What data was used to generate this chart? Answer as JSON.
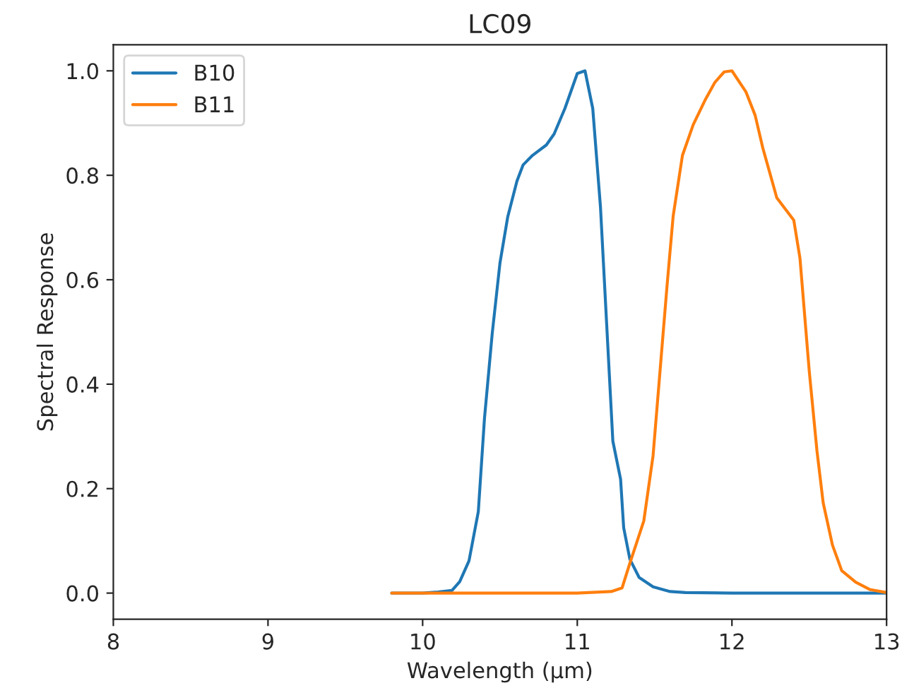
{
  "chart_data": {
    "type": "line",
    "title": "LC09",
    "xlabel": "Wavelength (µm)",
    "ylabel": "Spectral Response",
    "xlim": [
      8,
      13
    ],
    "xticks": [
      8,
      9,
      10,
      11,
      12,
      13
    ],
    "ylim": [
      -0.05,
      1.05
    ],
    "yticks": [
      {
        "value": 0,
        "label": "0.0"
      },
      {
        "value": 0.2,
        "label": "0.2"
      },
      {
        "value": 0.4,
        "label": "0.4"
      },
      {
        "value": 0.6,
        "label": "0.6"
      },
      {
        "value": 0.8,
        "label": "0.8"
      },
      {
        "value": 1.0,
        "label": "1.0"
      }
    ],
    "grid": false,
    "legend": "top left",
    "marker": "none",
    "line_style": "solid",
    "series": [
      {
        "name": "B10",
        "color": "#1f77b4",
        "x": [
          9.8,
          10.0,
          10.1,
          10.19,
          10.24,
          10.3,
          10.36,
          10.4,
          10.45,
          10.5,
          10.55,
          10.61,
          10.65,
          10.71,
          10.8,
          10.85,
          10.92,
          11.0,
          11.05,
          11.1,
          11.15,
          11.19,
          11.23,
          11.28,
          11.3,
          11.34,
          11.4,
          11.49,
          11.6,
          11.7,
          12.0,
          12.5,
          13.0
        ],
        "values": [
          0.0,
          0.0,
          0.002,
          0.005,
          0.022,
          0.062,
          0.156,
          0.335,
          0.497,
          0.632,
          0.72,
          0.789,
          0.82,
          0.838,
          0.858,
          0.879,
          0.928,
          0.995,
          1.0,
          0.928,
          0.739,
          0.515,
          0.291,
          0.218,
          0.125,
          0.065,
          0.03,
          0.012,
          0.003,
          0.001,
          0.0,
          0.0,
          0.0
        ]
      },
      {
        "name": "B11",
        "color": "#ff7f0e",
        "x": [
          9.8,
          10.5,
          11.0,
          11.22,
          11.29,
          11.34,
          11.43,
          11.49,
          11.53,
          11.58,
          11.62,
          11.68,
          11.75,
          11.83,
          11.89,
          11.95,
          12.0,
          12.09,
          12.15,
          12.2,
          12.29,
          12.4,
          12.44,
          12.5,
          12.55,
          12.59,
          12.65,
          12.71,
          12.8,
          12.89,
          12.98,
          13.0
        ],
        "values": [
          0.0,
          0.0,
          0.0,
          0.003,
          0.01,
          0.057,
          0.138,
          0.263,
          0.407,
          0.587,
          0.722,
          0.838,
          0.897,
          0.946,
          0.978,
          0.998,
          1.0,
          0.96,
          0.915,
          0.852,
          0.757,
          0.714,
          0.641,
          0.425,
          0.272,
          0.173,
          0.092,
          0.043,
          0.021,
          0.007,
          0.002,
          0.001
        ]
      }
    ]
  }
}
